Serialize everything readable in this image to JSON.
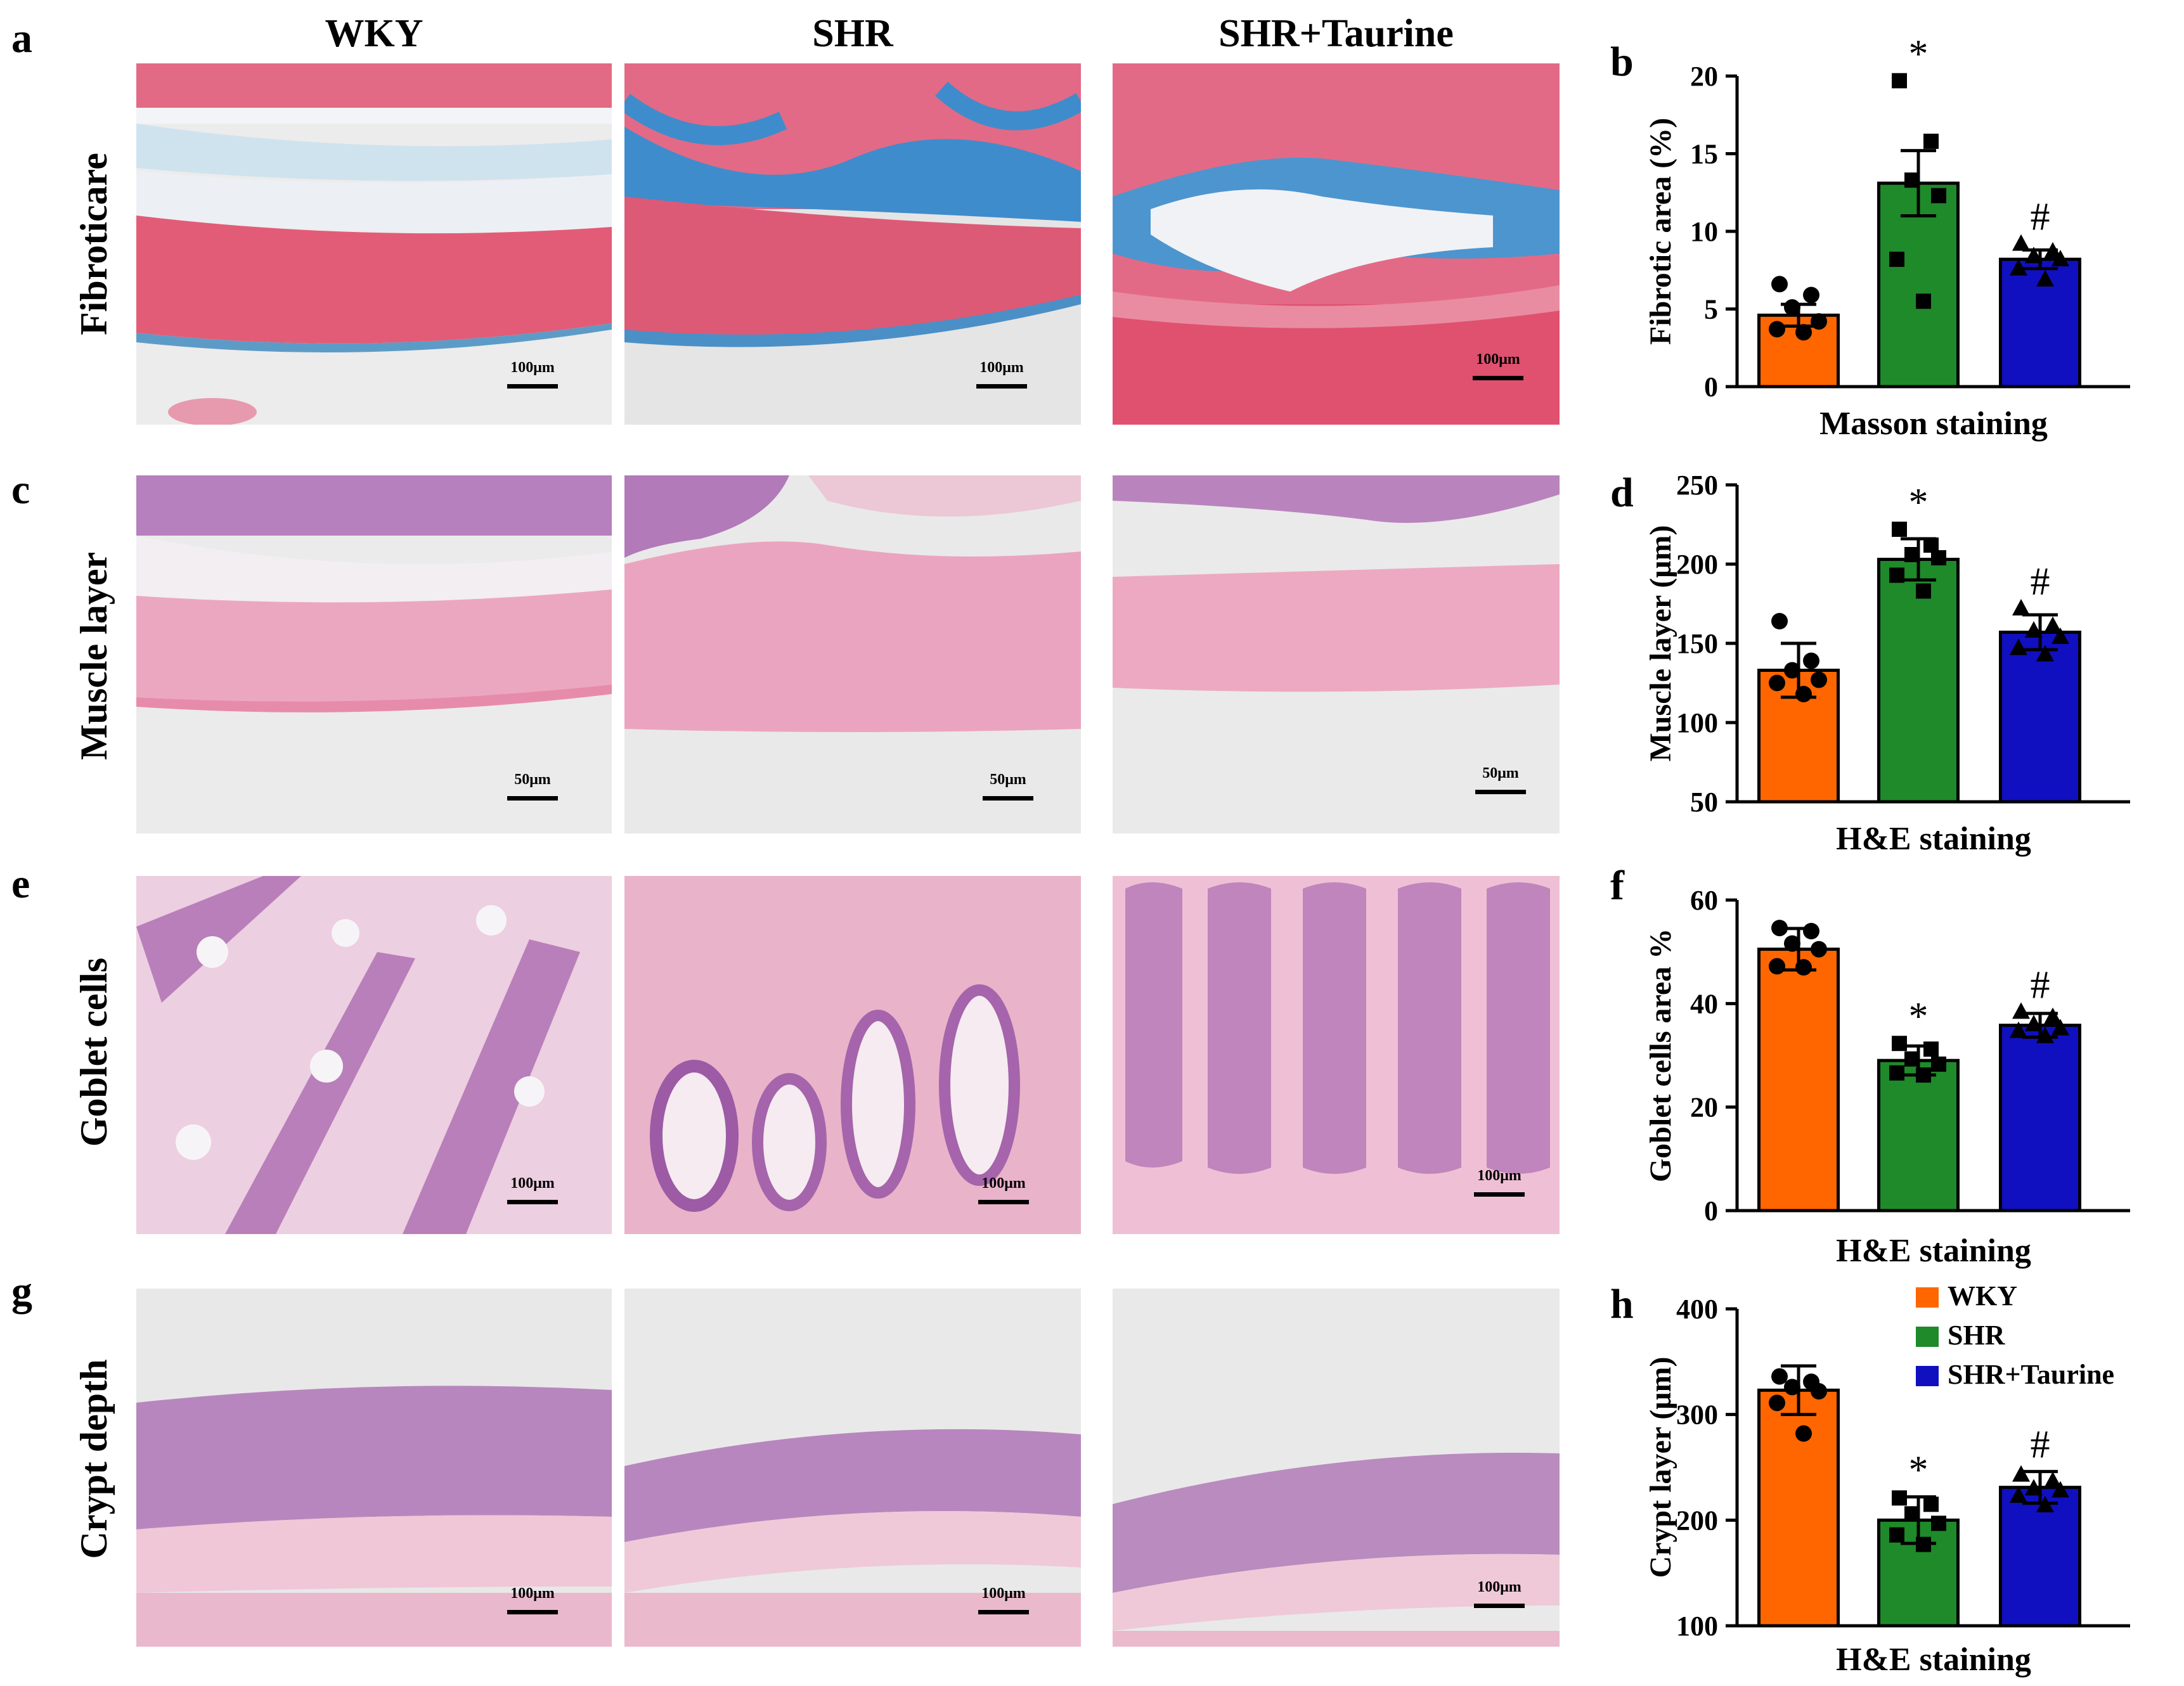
{
  "figure": {
    "panel_letters": {
      "a": "a",
      "b": "b",
      "c": "c",
      "d": "d",
      "e": "e",
      "f": "f",
      "g": "g",
      "h": "h"
    },
    "column_headers": [
      "WKY",
      "SHR",
      "SHR+Taurine"
    ],
    "row_labels": [
      "Fibroticare",
      "Muscle layer",
      "Goblet cells",
      "Crypt depth"
    ],
    "scale_bars": {
      "row1": [
        "100μm",
        "100μm",
        "100μm"
      ],
      "row2": [
        "50μm",
        "50μm",
        "50μm"
      ],
      "row3": [
        "100μm",
        "100μm",
        "100μm"
      ],
      "row4": [
        "100μm",
        "100μm",
        "100μm"
      ]
    },
    "image_tones": {
      "masson_red": "#e05a74",
      "masson_blue": "#3a86c8",
      "he_pink": "#eaa2be",
      "he_purple": "#9a5ca8",
      "background": "#e8e8e8"
    },
    "legend": [
      {
        "label": "WKY",
        "color": "#ff6600"
      },
      {
        "label": "SHR",
        "color": "#1f8a2a"
      },
      {
        "label": "SHR+Taurine",
        "color": "#1010c0"
      }
    ]
  },
  "chart_data": [
    {
      "panel": "b",
      "type": "bar",
      "categories": [
        "WKY",
        "SHR",
        "SHR+Taurine"
      ],
      "values": [
        4.6,
        13.1,
        8.2
      ],
      "errors": [
        0.7,
        2.1,
        0.6
      ],
      "colors": [
        "#ff6600",
        "#1f8a2a",
        "#1010c0"
      ],
      "points": [
        [
          6.6,
          5.9,
          5.1,
          4.2,
          3.7,
          3.5
        ],
        [
          19.7,
          15.8,
          13.3,
          12.3,
          8.2,
          5.5
        ],
        [
          9.2,
          8.7,
          8.4,
          8.2,
          7.6,
          6.9
        ]
      ],
      "markers": [
        "circle",
        "square",
        "triangle"
      ],
      "annotations": [
        "",
        "*",
        "#"
      ],
      "ylabel": "Fibrotic area (%)",
      "xlabel": "Masson staining",
      "ylim": [
        0,
        20
      ],
      "yticks": [
        0,
        5,
        10,
        15,
        20
      ],
      "ytick_labels": [
        "0",
        "5",
        "10",
        "15",
        "20"
      ]
    },
    {
      "panel": "d",
      "type": "bar",
      "categories": [
        "WKY",
        "SHR",
        "SHR+Taurine"
      ],
      "values": [
        133,
        203,
        157
      ],
      "errors": [
        17,
        13,
        11
      ],
      "colors": [
        "#ff6600",
        "#1f8a2a",
        "#1010c0"
      ],
      "points": [
        [
          164,
          139,
          133,
          127,
          125,
          118
        ],
        [
          222,
          212,
          206,
          204,
          193,
          183
        ],
        [
          172,
          161,
          158,
          154,
          147,
          143
        ]
      ],
      "markers": [
        "circle",
        "square",
        "triangle"
      ],
      "annotations": [
        "",
        "*",
        "#"
      ],
      "ylabel": "Muscle layer (μm)",
      "xlabel": "H&E staining",
      "ylim": [
        50,
        250
      ],
      "yticks": [
        50,
        100,
        150,
        200,
        250
      ],
      "ytick_labels": [
        "50",
        "100",
        "150",
        "200",
        "250"
      ]
    },
    {
      "panel": "f",
      "type": "bar",
      "categories": [
        "WKY",
        "SHR",
        "SHR+Taurine"
      ],
      "values": [
        50.5,
        29,
        35.8
      ],
      "errors": [
        4,
        2.8,
        2.3
      ],
      "colors": [
        "#ff6600",
        "#1f8a2a",
        "#1010c0"
      ],
      "points": [
        [
          54.6,
          54,
          51.6,
          50.5,
          47.2,
          47
        ],
        [
          32.3,
          31.2,
          29.3,
          28.3,
          26.6,
          26.2
        ],
        [
          38.4,
          37.4,
          36,
          35.2,
          34.7,
          33.7
        ]
      ],
      "markers": [
        "circle",
        "square",
        "triangle"
      ],
      "annotations": [
        "",
        "*",
        "#"
      ],
      "ylabel": "Goblet cells area %",
      "xlabel": "H&E staining",
      "ylim": [
        0,
        60
      ],
      "yticks": [
        0,
        20,
        40,
        60
      ],
      "ytick_labels": [
        "0",
        "20",
        "40",
        "60"
      ]
    },
    {
      "panel": "h",
      "type": "bar",
      "categories": [
        "WKY",
        "SHR",
        "SHR+Taurine"
      ],
      "values": [
        323,
        200,
        231
      ],
      "errors": [
        23,
        22,
        15
      ],
      "colors": [
        "#ff6600",
        "#1f8a2a",
        "#1010c0"
      ],
      "points": [
        [
          336,
          331,
          326,
          322,
          311,
          282
        ],
        [
          221,
          215,
          206,
          197,
          186,
          177
        ],
        [
          243,
          237,
          230,
          228,
          223,
          214
        ]
      ],
      "markers": [
        "circle",
        "square",
        "triangle"
      ],
      "annotations": [
        "",
        "*",
        "#"
      ],
      "ylabel": "Crypt layer (μm)",
      "xlabel": "H&E staining",
      "ylim": [
        100,
        400
      ],
      "yticks": [
        100,
        200,
        300,
        400
      ],
      "ytick_labels": [
        "100",
        "200",
        "300",
        "400"
      ],
      "legend_position": "top-right"
    }
  ]
}
